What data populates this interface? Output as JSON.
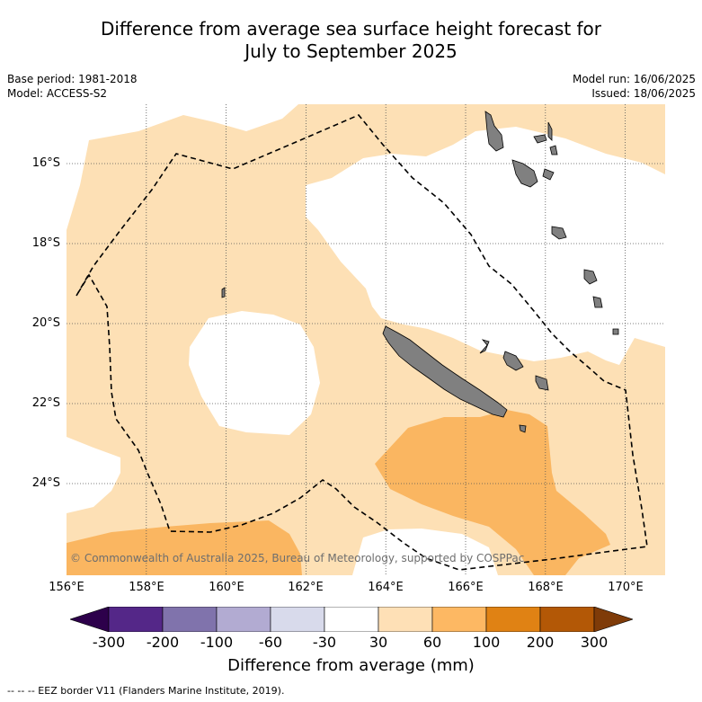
{
  "title": {
    "line1": "Difference from average sea surface height forecast for",
    "line2": "July to September 2025"
  },
  "meta": {
    "base_period": "Base period: 1981-2018",
    "model": "Model: ACCESS-S2",
    "model_run": "Model run: 16/06/2025",
    "issued": "Issued: 18/06/2025"
  },
  "map": {
    "copyright": "© Commonwealth of Australia 2025, Bureau of Meteorology, supported by COSPPac",
    "lat_labels": [
      "16°S",
      "18°S",
      "20°S",
      "22°S",
      "24°S"
    ],
    "lon_labels": [
      "156°E",
      "158°E",
      "160°E",
      "162°E",
      "164°E",
      "166°E",
      "168°E",
      "170°E"
    ],
    "colors": {
      "ocean_neutral": "#ffffff",
      "light_orange": "#fde0b5",
      "mid_orange": "#fab661",
      "land": "#808080",
      "land_outline": "#000000",
      "grid": "#555555"
    }
  },
  "colorbar": {
    "ticks": [
      "-300",
      "-200",
      "-100",
      "-60",
      "-30",
      "30",
      "60",
      "100",
      "200",
      "300"
    ],
    "colors": [
      "#2d004b",
      "#542788",
      "#8073ac",
      "#b2abd2",
      "#d8daeb",
      "#ffffff",
      "#fee0b6",
      "#fdb863",
      "#e08214",
      "#b35806",
      "#7f3b08"
    ],
    "title": "Difference from average (mm)"
  },
  "eez_note": "-- -- -- EEZ border V11 (Flanders Marine Institute, 2019)."
}
